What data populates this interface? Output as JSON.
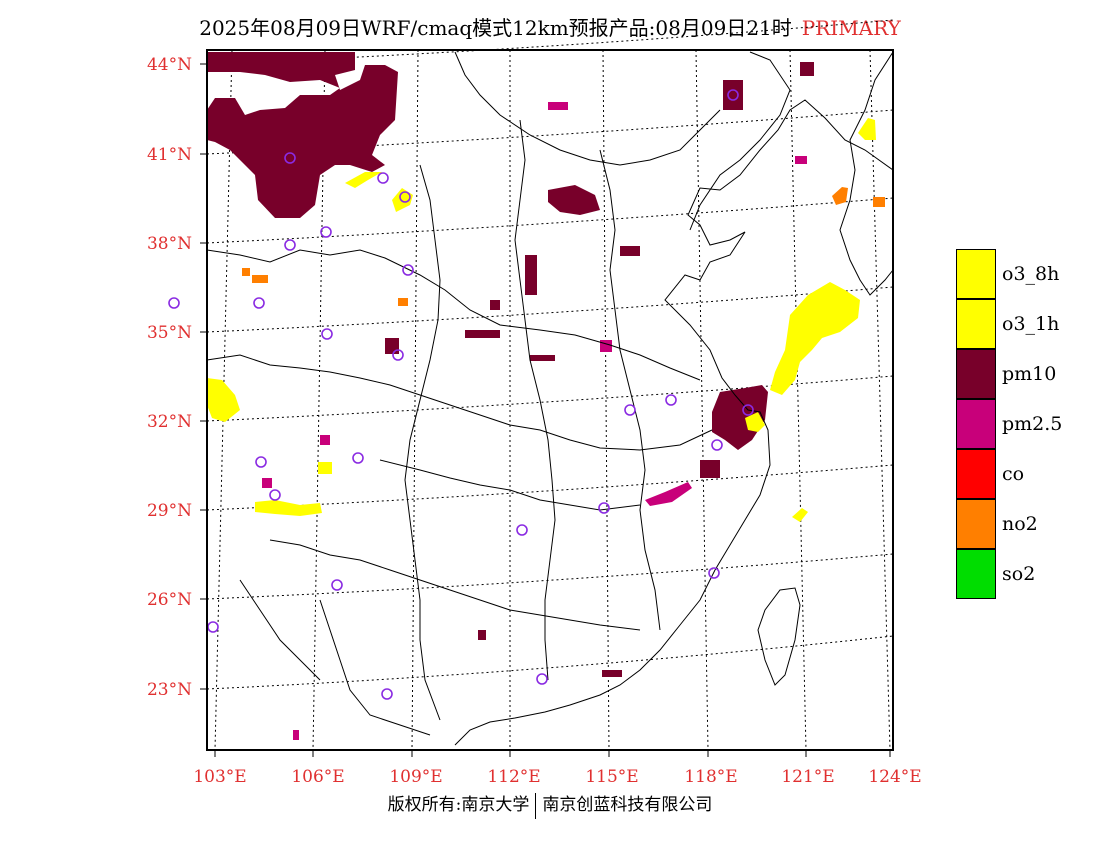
{
  "title": {
    "main": "2025年08月09日WRF/cmaq模式12km预报产品:08月09日21时",
    "tag": "PRIMARY"
  },
  "colors": {
    "o3_8h": "#ffff00",
    "o3_1h": "#ffff00",
    "pm10": "#78002a",
    "pm2_5": "#c8007a",
    "co": "#ff0000",
    "no2": "#ff7f00",
    "so2": "#00dd00",
    "station": "#8a2be2",
    "axis_label": "#e03030"
  },
  "axes": {
    "lat_labels": [
      "44°N",
      "41°N",
      "38°N",
      "35°N",
      "32°N",
      "29°N",
      "26°N",
      "23°N"
    ],
    "lon_labels": [
      "103°E",
      "106°E",
      "109°E",
      "112°E",
      "115°E",
      "118°E",
      "121°E",
      "124°E"
    ]
  },
  "legend": [
    {
      "label": "o3_8h",
      "color": "#ffff00"
    },
    {
      "label": "o3_1h",
      "color": "#ffff00"
    },
    {
      "label": "pm10",
      "color": "#78002a"
    },
    {
      "label": "pm2.5",
      "color": "#c8007a"
    },
    {
      "label": "co",
      "color": "#ff0000"
    },
    {
      "label": "no2",
      "color": "#ff7f00"
    },
    {
      "label": "so2",
      "color": "#00dd00"
    }
  ],
  "footer": {
    "left": "版权所有:南京大学",
    "right": "南京创蓝科技有限公司"
  }
}
